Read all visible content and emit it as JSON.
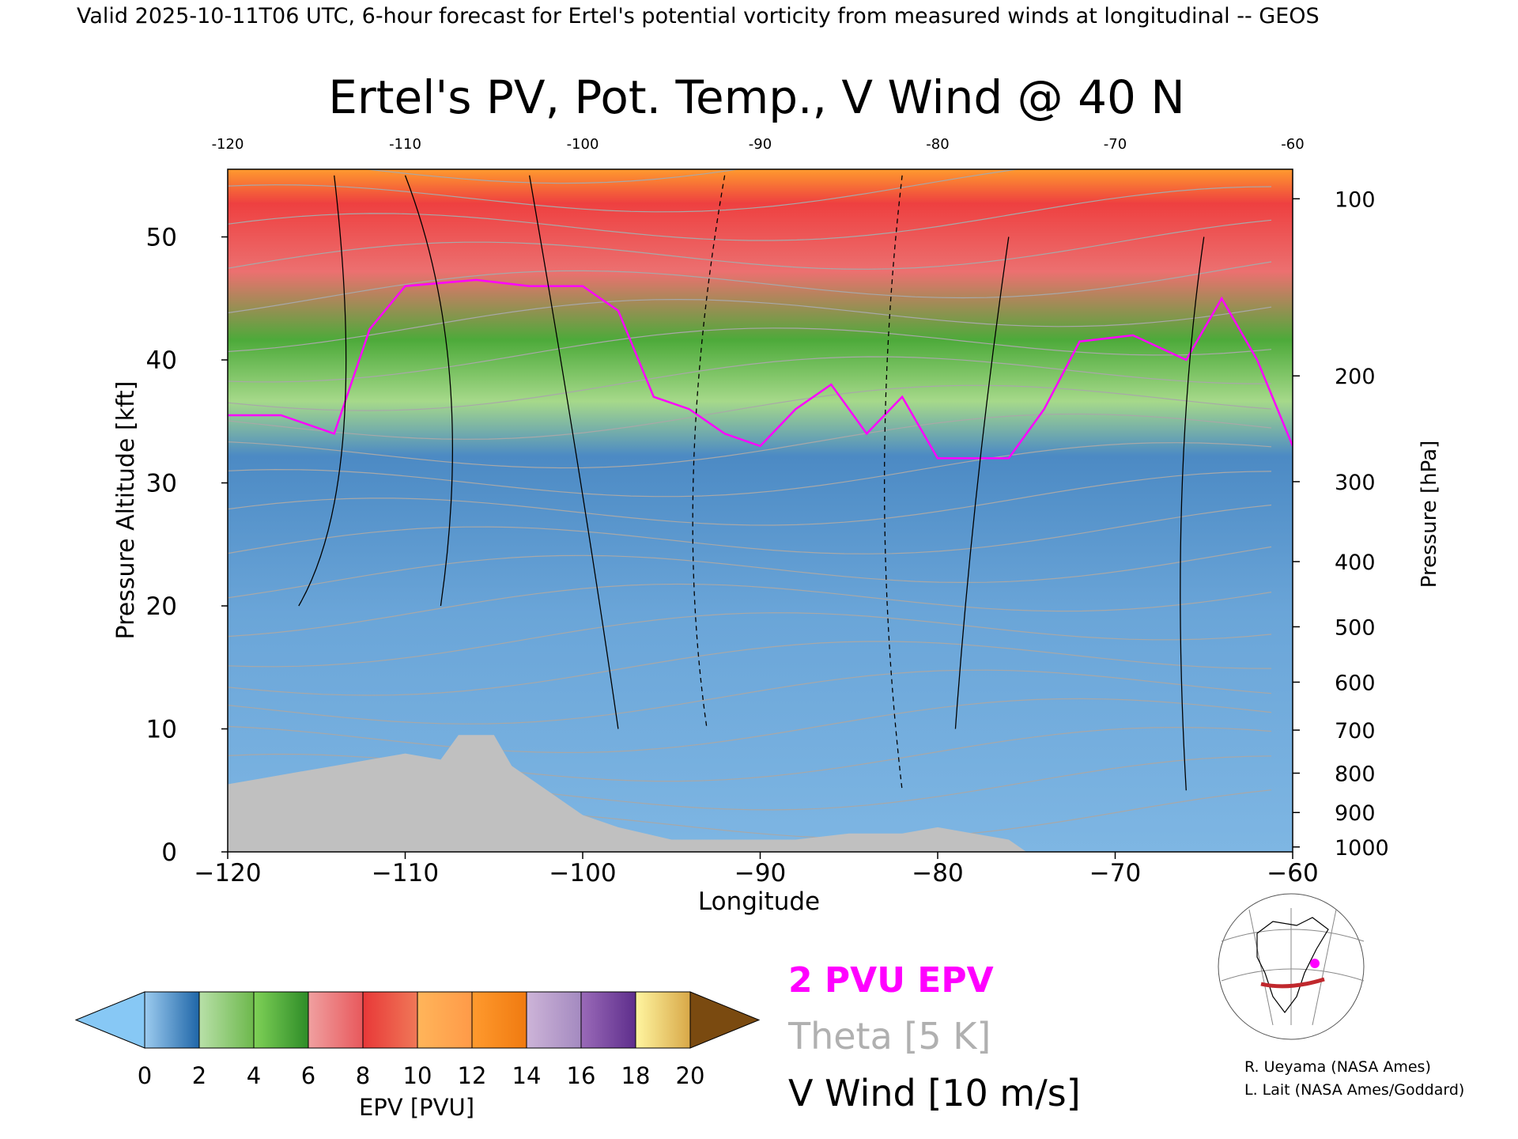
{
  "header": "Valid 2025-10-11T06 UTC, 6-hour forecast for Ertel's potential vorticity from measured winds at longitudinal -- GEOS",
  "chart_data": {
    "type": "heatmap",
    "title": "Ertel's PV, Pot. Temp., V Wind @ 40 N",
    "xlabel": "Longitude",
    "ylabel_left": "Pressure Altitude [kft]",
    "ylabel_right": "Pressure [hPa]",
    "xlim": [
      -120,
      -60
    ],
    "ylim_kft": [
      0,
      55.5
    ],
    "x_ticks": [
      -120,
      -110,
      -100,
      -90,
      -80,
      -70,
      -60
    ],
    "y_ticks_kft": [
      0,
      10,
      20,
      30,
      40,
      50
    ],
    "pressure_ticks": [
      {
        "hPa": "100",
        "kft": 53.1
      },
      {
        "hPa": "200",
        "kft": 38.7
      },
      {
        "hPa": "300",
        "kft": 30.1
      },
      {
        "hPa": "400",
        "kft": 23.6
      },
      {
        "hPa": "500",
        "kft": 18.3
      },
      {
        "hPa": "600",
        "kft": 13.8
      },
      {
        "hPa": "700",
        "kft": 9.9
      },
      {
        "hPa": "800",
        "kft": 6.4
      },
      {
        "hPa": "900",
        "kft": 3.2
      },
      {
        "hPa": "1000",
        "kft": 0.4
      }
    ],
    "tropopause_2pvu_kft": [
      [
        -120,
        35.5
      ],
      [
        -117,
        35.5
      ],
      [
        -114,
        34.0
      ],
      [
        -112,
        42.5
      ],
      [
        -110,
        46.0
      ],
      [
        -106,
        46.5
      ],
      [
        -103,
        46.0
      ],
      [
        -100,
        46.0
      ],
      [
        -98,
        44.0
      ],
      [
        -96,
        37.0
      ],
      [
        -94,
        36.0
      ],
      [
        -92,
        34.0
      ],
      [
        -90,
        33.0
      ],
      [
        -88,
        36.0
      ],
      [
        -86,
        38.0
      ],
      [
        -84,
        34.0
      ],
      [
        -82,
        37.0
      ],
      [
        -80,
        32.0
      ],
      [
        -78,
        32.0
      ],
      [
        -76,
        32.0
      ],
      [
        -74,
        36.0
      ],
      [
        -72,
        41.5
      ],
      [
        -69,
        42.0
      ],
      [
        -66,
        40.0
      ],
      [
        -64,
        45.0
      ],
      [
        -62,
        40.0
      ],
      [
        -60,
        33.0
      ]
    ],
    "terrain_kft": [
      [
        -120,
        5.5
      ],
      [
        -118,
        6.0
      ],
      [
        -116,
        6.5
      ],
      [
        -114,
        7.0
      ],
      [
        -112,
        7.5
      ],
      [
        -110,
        8.0
      ],
      [
        -108,
        7.5
      ],
      [
        -107,
        9.5
      ],
      [
        -105,
        9.5
      ],
      [
        -104,
        7.0
      ],
      [
        -102,
        5.0
      ],
      [
        -100,
        3.0
      ],
      [
        -98,
        2.0
      ],
      [
        -95,
        1.0
      ],
      [
        -92,
        1.0
      ],
      [
        -88,
        1.0
      ],
      [
        -85,
        1.5
      ],
      [
        -82,
        1.5
      ],
      [
        -80,
        2.0
      ],
      [
        -78,
        1.5
      ],
      [
        -76,
        1.0
      ],
      [
        -75,
        0.0
      ]
    ],
    "pv_colorbar": {
      "label": "EPV [PVU]",
      "ticks": [
        "0",
        "2",
        "4",
        "6",
        "8",
        "10",
        "12",
        "14",
        "16",
        "18",
        "20"
      ],
      "under_color": "#87c8f5",
      "over_color": "#7a4a10",
      "segments": [
        [
          "#9ccbef",
          "#1f66a8"
        ],
        [
          "#b8e0a8",
          "#6db84c"
        ],
        [
          "#7fd157",
          "#2e8c28"
        ],
        [
          "#f0a0a0",
          "#e8585c"
        ],
        [
          "#e83838",
          "#f07858"
        ],
        [
          "#ffb55a",
          "#ff9a48"
        ],
        [
          "#ff9a2e",
          "#f07a10"
        ],
        [
          "#cdb4d8",
          "#a48ac0"
        ],
        [
          "#9a6ab8",
          "#5e2e8c"
        ],
        [
          "#fff5a0",
          "#d8a848"
        ]
      ]
    },
    "legend": [
      {
        "label": "2 PVU EPV",
        "color": "#ff00ff"
      },
      {
        "label": "Theta [5 K]",
        "color": "#b0b0b0"
      },
      {
        "label": "V Wind [10 m/s]",
        "color": "#000000"
      }
    ],
    "credits": [
      "R. Ueyama (NASA Ames)",
      "L. Lait (NASA Ames/Goddard)"
    ]
  }
}
